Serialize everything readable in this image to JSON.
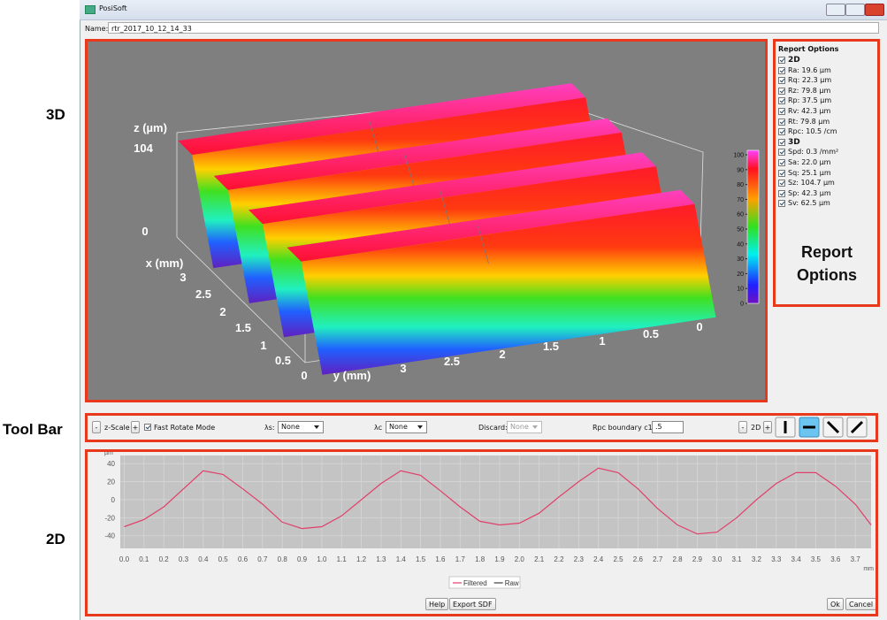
{
  "annotations": {
    "three_d": "3D",
    "tool_bar": "Tool Bar",
    "two_d": "2D",
    "report_options": "Report Options"
  },
  "window": {
    "title": "PosiSoft",
    "name_label": "Name:",
    "name_value": "rtr_2017_10_12_14_33"
  },
  "plot_3d": {
    "z_label": "z (µm)",
    "z_max": "104",
    "z_min": "0",
    "x_label": "x (mm)",
    "x_ticks": [
      "3",
      "2.5",
      "2",
      "1.5",
      "1",
      "0.5",
      "0"
    ],
    "y_label": "y (mm)",
    "y_ticks": [
      "3",
      "2.5",
      "2",
      "1.5",
      "1",
      "0.5",
      "0"
    ],
    "colorbar_lim": [
      0,
      103
    ],
    "colorbar_ticks": [
      0,
      10,
      20,
      30,
      40,
      50,
      60,
      70,
      80,
      90,
      100
    ]
  },
  "report_options": {
    "title": "Report Options",
    "groups": [
      {
        "name": "2D",
        "items": [
          "Ra: 19.6 µm",
          "Rq: 22.3 µm",
          "Rz: 79.8 µm",
          "Rp: 37.5 µm",
          "Rv: 42.3 µm",
          "Rt: 79.8 µm",
          "Rpc: 10.5 /cm"
        ]
      },
      {
        "name": "3D",
        "items": [
          "Spd: 0.3 /mm²",
          "Sa: 22.0 µm",
          "Sq: 25.1 µm",
          "Sz: 104.7 µm",
          "Sp: 42.3 µm",
          "Sv: 62.5 µm"
        ]
      }
    ]
  },
  "toolbar": {
    "zscale": {
      "minus": "-",
      "label": "z-Scale",
      "plus": "+"
    },
    "fast_rotate": {
      "label": "Fast Rotate Mode",
      "checked": true
    },
    "lambda_s": {
      "label": "λs:",
      "value": "None"
    },
    "lambda_c": {
      "label": "λc",
      "value": "None"
    },
    "discard": {
      "label": "Discard:",
      "value": "None"
    },
    "rpc_boundary": {
      "label": "Rpc boundary c1:",
      "value": ".5"
    },
    "view_2d": {
      "minus": "-",
      "label": "2D",
      "plus": "+"
    }
  },
  "chart_data": {
    "type": "line",
    "y_unit": "µm",
    "x_unit": "mm",
    "x": [
      0,
      0.1,
      0.2,
      0.3,
      0.4,
      0.5,
      0.6,
      0.7,
      0.8,
      0.9,
      1.0,
      1.1,
      1.2,
      1.3,
      1.4,
      1.5,
      1.6,
      1.7,
      1.8,
      1.9,
      2.0,
      2.1,
      2.2,
      2.3,
      2.4,
      2.5,
      2.6,
      2.7,
      2.8,
      2.9,
      3.0,
      3.1,
      3.2,
      3.3,
      3.4,
      3.5,
      3.6,
      3.7,
      3.78
    ],
    "series": [
      {
        "name": "Filtered",
        "color": "#e0406a",
        "values": [
          -30,
          -22,
          -8,
          12,
          32,
          28,
          12,
          -5,
          -25,
          -32,
          -30,
          -18,
          0,
          18,
          32,
          27,
          10,
          -8,
          -24,
          -28,
          -26,
          -15,
          3,
          20,
          35,
          30,
          12,
          -10,
          -28,
          -38,
          -36,
          -20,
          0,
          18,
          30,
          30,
          15,
          -5,
          -28
        ]
      },
      {
        "name": "Raw",
        "color": "#404040",
        "values": [
          null,
          null,
          null,
          null,
          null,
          null,
          null,
          null,
          null,
          null,
          null,
          null,
          null,
          null,
          null,
          null,
          null,
          null,
          null,
          null,
          null,
          null,
          null,
          null,
          null,
          null,
          null,
          null,
          null,
          null,
          null,
          null,
          null,
          null,
          null,
          null,
          null,
          null,
          null
        ]
      }
    ],
    "xlim": [
      -0.02,
      3.78
    ],
    "ylim": [
      -54,
      49
    ],
    "xticks": [
      {
        "value": 0,
        "label": "0.0"
      },
      0.1,
      0.2,
      0.3,
      0.4,
      0.5,
      0.6,
      0.7,
      0.8,
      0.9,
      {
        "value": 1,
        "label": "1.0"
      },
      1.1,
      1.2,
      1.3,
      1.4,
      1.5,
      1.6,
      1.7,
      1.8,
      1.9,
      {
        "value": 2,
        "label": "2.0"
      },
      2.1,
      2.2,
      2.3,
      2.4,
      2.5,
      2.6,
      2.7,
      2.8,
      2.9,
      {
        "value": 3,
        "label": "3.0"
      },
      3.1,
      3.2,
      3.3,
      3.4,
      3.5,
      3.6,
      3.7
    ],
    "yticks": [
      40,
      20,
      0,
      -20,
      -40
    ],
    "grid": true
  },
  "buttons": {
    "help": "Help",
    "export": "Export SDF",
    "ok": "Ok",
    "cancel": "Cancel"
  }
}
